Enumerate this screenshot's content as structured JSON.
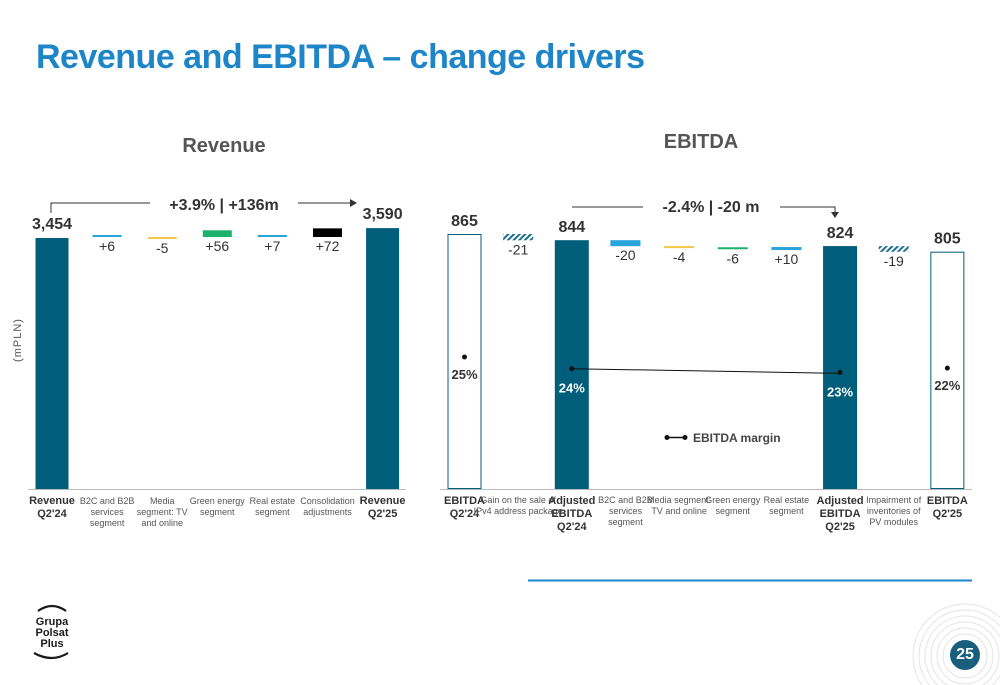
{
  "title": "Revenue and EBITDA – change drivers",
  "page_number": "25",
  "logo": {
    "lines": [
      "Grupa",
      "Polsat",
      "Plus"
    ]
  },
  "colors": {
    "accent": "#1E86C8",
    "teal": "#005E7A",
    "light_blue": "#29A3DA",
    "green": "#1DB26B",
    "yellow": "#F5C74A",
    "black": "#000000"
  },
  "chart_data": [
    {
      "type": "bar",
      "title": "Revenue",
      "ylabel": "(mPLN)",
      "annotation": "+3.9% | +136m",
      "categories": [
        "Revenue Q2'24",
        "B2C and B2B services segment",
        "Media segment: TV and online",
        "Green energy segment",
        "Real estate segment",
        "Consolidation adjustments",
        "Revenue Q2'25"
      ],
      "values": [
        3454,
        6,
        -5,
        56,
        7,
        72,
        3590
      ],
      "labels": [
        "3,454",
        "+6",
        "-5",
        "+56",
        "+7",
        "+72",
        "3,590"
      ],
      "kinds": [
        "total",
        "delta",
        "delta",
        "delta",
        "delta",
        "delta",
        "total"
      ],
      "bar_colors": [
        "#005E7A",
        "#29A3DA",
        "#F5C74A",
        "#1DB26B",
        "#29A3DA",
        "#000000",
        "#005E7A"
      ]
    },
    {
      "type": "bar",
      "title": "EBITDA",
      "annotation": "-2.4% | -20 m",
      "legend": "EBITDA margin",
      "categories": [
        "EBITDA Q2'24",
        "Gain on the sale of IPv4 address package",
        "Adjusted EBITDA Q2'24",
        "B2C and B2B services segment",
        "Media segment: TV and online",
        "Green energy segment",
        "Real estate segment",
        "Adjusted EBITDA Q2'25",
        "Impairment of inventories of PV modules",
        "EBITDA Q2'25"
      ],
      "values": [
        865,
        -21,
        844,
        -20,
        -4,
        -6,
        10,
        824,
        -19,
        805
      ],
      "labels": [
        "865",
        "-21",
        "844",
        "-20",
        "-4",
        "-6",
        "+10",
        "824",
        "-19",
        "805"
      ],
      "kinds": [
        "total",
        "delta",
        "total",
        "delta",
        "delta",
        "delta",
        "delta",
        "total",
        "delta",
        "total"
      ],
      "styles": [
        "outline",
        "hatch",
        "solid",
        "solid",
        "solid",
        "solid",
        "solid",
        "solid",
        "hatch",
        "outline"
      ],
      "bar_colors": [
        "#005E7A",
        "#1A6F8A",
        "#005E7A",
        "#29A3DA",
        "#F5C74A",
        "#1DB26B",
        "#29A3DA",
        "#005E7A",
        "#1A6F8A",
        "#005E7A"
      ],
      "margin": {
        "EBITDA Q2'24": "25%",
        "Adjusted EBITDA Q2'24": "24%",
        "Adjusted EBITDA Q2'25": "23%",
        "EBITDA Q2'25": "22%"
      }
    }
  ]
}
